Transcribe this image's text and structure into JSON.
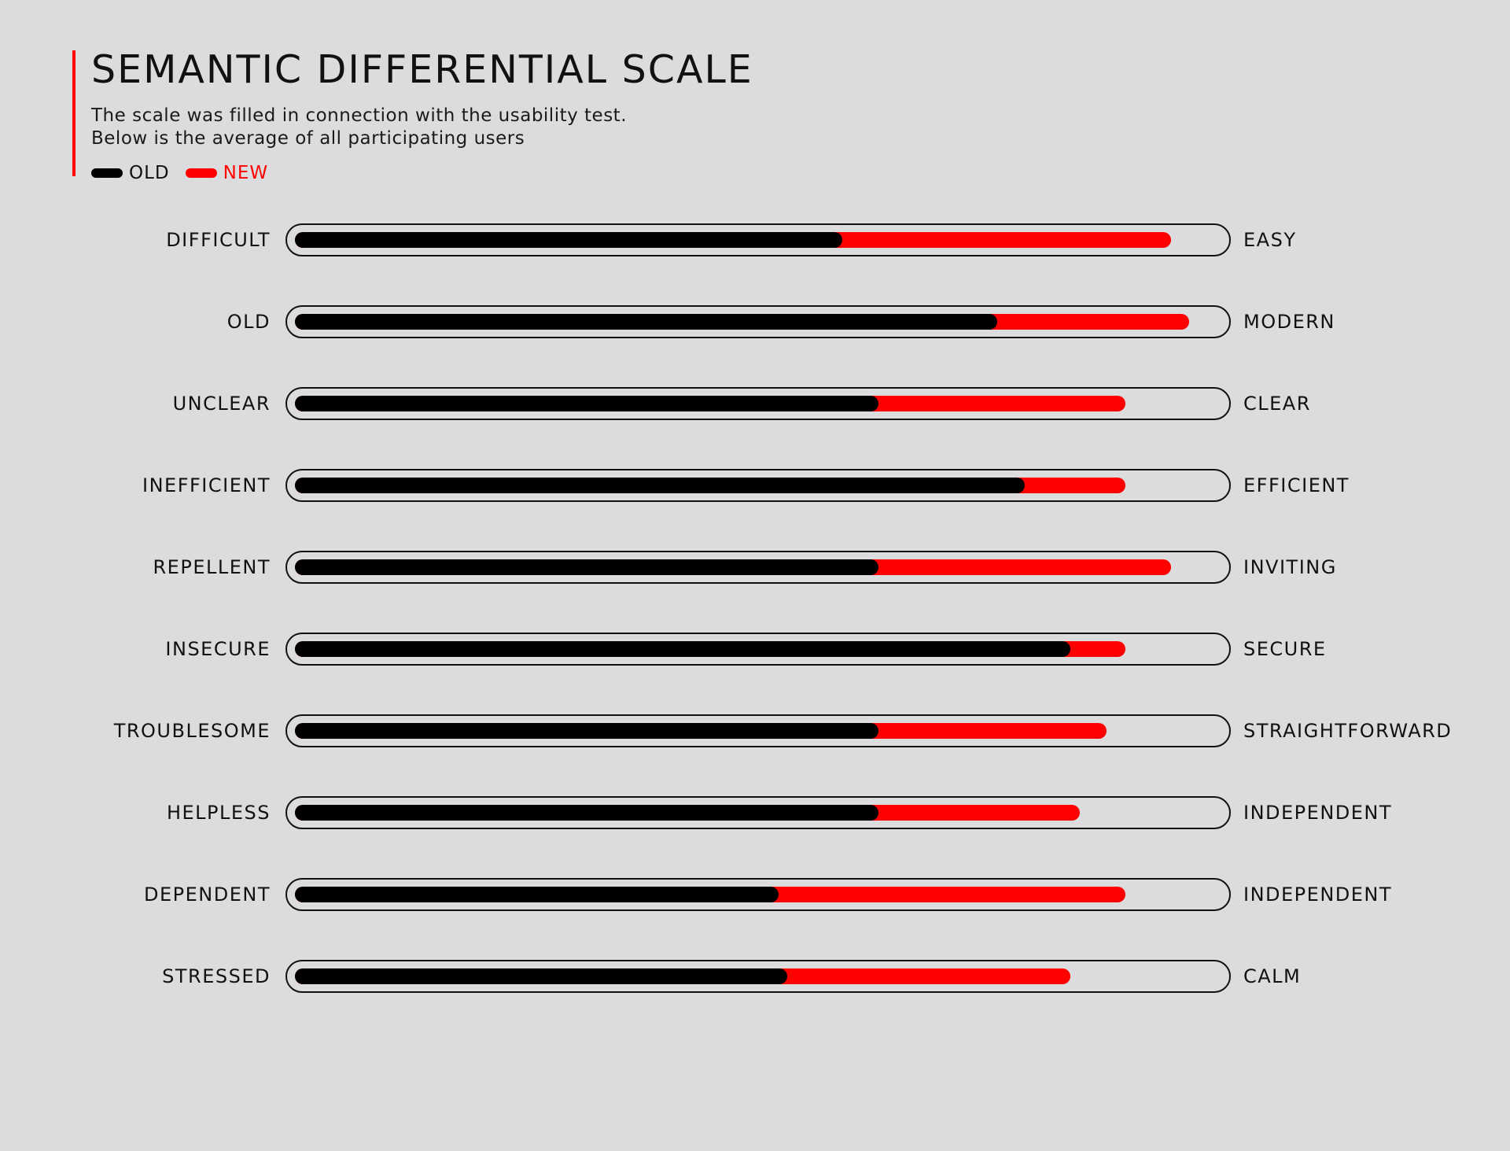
{
  "header": {
    "title": "SEMANTIC DIFFERENTIAL SCALE",
    "subtitle_line1": "The scale was filled in connection with the usability test.",
    "subtitle_line2": "Below is the average of all participating users"
  },
  "colors": {
    "old": "#000000",
    "new": "#ff0000",
    "accent": "#ff0000",
    "background": "#dcdcde"
  },
  "chart_data": {
    "type": "bar",
    "title": "SEMANTIC DIFFERENTIAL SCALE",
    "value_range": [
      0,
      1
    ],
    "legend_placement": "top-left",
    "series": [
      {
        "name": "OLD",
        "values": [
          0.6,
          0.77,
          0.64,
          0.8,
          0.64,
          0.85,
          0.64,
          0.64,
          0.53,
          0.54
        ]
      },
      {
        "name": "NEW",
        "values": [
          0.96,
          0.98,
          0.91,
          0.91,
          0.96,
          0.91,
          0.89,
          0.86,
          0.91,
          0.85
        ]
      }
    ],
    "rows": [
      {
        "left": "DIFFICULT",
        "right": "EASY"
      },
      {
        "left": "OLD",
        "right": "MODERN"
      },
      {
        "left": "UNCLEAR",
        "right": "CLEAR"
      },
      {
        "left": "INEFFICIENT",
        "right": "EFFICIENT"
      },
      {
        "left": "REPELLENT",
        "right": "INVITING"
      },
      {
        "left": "INSECURE",
        "right": "SECURE"
      },
      {
        "left": "TROUBLESOME",
        "right": "STRAIGHTFORWARD"
      },
      {
        "left": "HELPLESS",
        "right": "INDEPENDENT"
      },
      {
        "left": "DEPENDENT",
        "right": "INDEPENDENT"
      },
      {
        "left": "STRESSED",
        "right": "CALM"
      }
    ]
  }
}
